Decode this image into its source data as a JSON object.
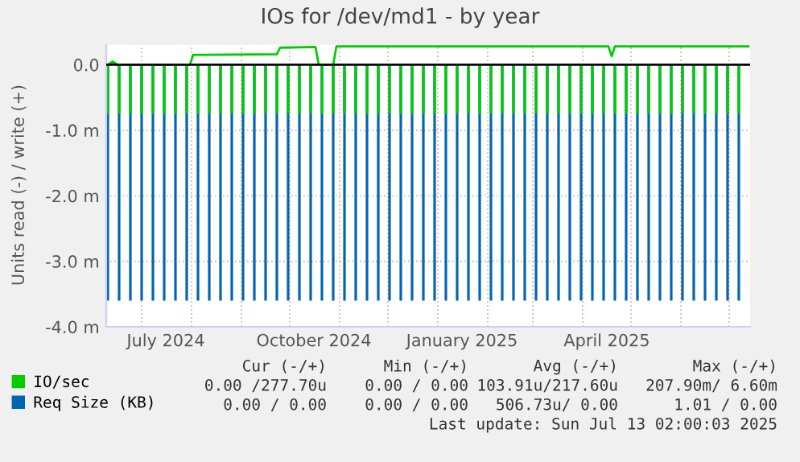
{
  "chart_data": {
    "type": "bar",
    "title": "IOs for /dev/md1 - by year",
    "ylabel": "Units read (-) / write (+)",
    "xlim": [
      "2024-06-09",
      "2025-07-14"
    ],
    "xticks": [
      {
        "value": "2024-07-01",
        "label": null
      },
      {
        "value": "2024-08-01",
        "label": null
      },
      {
        "value": "2024-09-01",
        "label": null
      },
      {
        "value": "2024-10-01",
        "label": null
      },
      {
        "value": "2024-11-01",
        "label": null
      },
      {
        "value": "2024-12-01",
        "label": null
      },
      {
        "value": "2025-01-01",
        "label": null
      },
      {
        "value": "2025-02-01",
        "label": null
      },
      {
        "value": "2025-03-01",
        "label": null
      },
      {
        "value": "2025-04-01",
        "label": null
      },
      {
        "value": "2025-05-01",
        "label": null
      },
      {
        "value": "2025-06-01",
        "label": null
      },
      {
        "value": "2025-07-01",
        "label": null
      },
      {
        "value": "2024-07-16",
        "label": "July 2024"
      },
      {
        "value": "2024-10-16",
        "label": "October 2024"
      },
      {
        "value": "2025-01-16",
        "label": "January 2025"
      },
      {
        "value": "2025-04-16",
        "label": "April 2025"
      }
    ],
    "ylim": [
      -4,
      0.3
    ],
    "yticks": [
      {
        "value": 0,
        "label": "0.0"
      },
      {
        "value": -1,
        "label": "-1.0 m"
      },
      {
        "value": -2,
        "label": "-2.0 m"
      },
      {
        "value": -3,
        "label": "-3.0 m"
      },
      {
        "value": -4,
        "label": "-4.0 m"
      }
    ],
    "grid": true,
    "legend": "bottom",
    "ref_lines": [
      {
        "axis": "y",
        "value": 0,
        "color": "#000000"
      }
    ],
    "x": [
      "2024-06-10",
      "2024-06-17",
      "2024-06-24",
      "2024-07-01",
      "2024-07-08",
      "2024-07-15",
      "2024-07-22",
      "2024-07-29",
      "2024-08-05",
      "2024-08-12",
      "2024-08-19",
      "2024-08-26",
      "2024-09-02",
      "2024-09-09",
      "2024-09-16",
      "2024-09-23",
      "2024-09-30",
      "2024-10-07",
      "2024-10-14",
      "2024-10-21",
      "2024-10-28",
      "2024-11-04",
      "2024-11-11",
      "2024-11-18",
      "2024-11-25",
      "2024-12-02",
      "2024-12-09",
      "2024-12-16",
      "2024-12-23",
      "2024-12-30",
      "2025-01-06",
      "2025-01-13",
      "2025-01-20",
      "2025-01-27",
      "2025-02-03",
      "2025-02-10",
      "2025-02-17",
      "2025-02-24",
      "2025-03-03",
      "2025-03-10",
      "2025-03-17",
      "2025-03-24",
      "2025-03-31",
      "2025-04-07",
      "2025-04-14",
      "2025-04-21",
      "2025-04-28",
      "2025-05-05",
      "2025-05-12",
      "2025-05-19",
      "2025-05-26",
      "2025-06-02",
      "2025-06-09",
      "2025-06-16",
      "2025-06-23",
      "2025-06-30",
      "2025-07-07"
    ],
    "series": [
      {
        "name": "IO/sec",
        "color": "#00cc00",
        "values": [
          -0.75,
          -0.75,
          -0.75,
          -0.75,
          -0.75,
          -0.75,
          -0.75,
          -0.75,
          -0.75,
          -0.75,
          -0.75,
          -0.75,
          -0.75,
          -0.75,
          -0.75,
          -0.75,
          -0.75,
          -0.75,
          -0.75,
          -0.75,
          -0.75,
          -0.75,
          -0.75,
          -0.75,
          -0.75,
          -0.75,
          -0.75,
          -0.75,
          -0.75,
          -0.75,
          -0.75,
          -0.75,
          -0.75,
          -0.75,
          -0.75,
          -0.75,
          -0.75,
          -0.75,
          -0.75,
          -0.75,
          -0.75,
          -0.75,
          -0.75,
          -0.75,
          -0.75,
          -0.75,
          -0.75,
          -0.75,
          -0.75,
          -0.75,
          -0.75,
          -0.75,
          -0.75,
          -0.75,
          -0.75,
          -0.75,
          -0.75
        ]
      },
      {
        "name": "Req Size (KB)",
        "color": "#0066b3",
        "values": [
          -3.6,
          -3.6,
          -3.6,
          -3.6,
          -3.6,
          -3.6,
          -3.6,
          -3.6,
          -3.6,
          -3.6,
          -3.6,
          -3.6,
          -3.6,
          -3.6,
          -3.6,
          -3.6,
          -3.6,
          -3.6,
          -3.6,
          -3.6,
          -3.6,
          -3.6,
          -3.6,
          -3.6,
          -3.6,
          -3.6,
          -3.6,
          -3.6,
          -3.6,
          -3.6,
          -3.6,
          -3.6,
          -3.6,
          -3.6,
          -3.6,
          -3.6,
          -3.6,
          -3.6,
          -3.6,
          -3.6,
          -3.6,
          -3.6,
          -3.6,
          -3.6,
          -3.6,
          -3.6,
          -3.6,
          -3.6,
          -3.6,
          -3.6,
          -3.6,
          -3.6,
          -3.6,
          -3.6,
          -3.6,
          -3.6,
          -3.6
        ]
      },
      {
        "type": "line",
        "color": "#00cc00",
        "x": [
          "2024-06-10",
          "2024-06-13",
          "2024-06-16",
          "2024-07-31",
          "2024-08-02",
          "2024-09-23",
          "2024-09-25",
          "2024-10-17",
          "2024-10-19",
          "2024-10-28",
          "2024-10-30",
          "2025-04-17",
          "2025-04-19",
          "2025-04-21",
          "2025-07-13"
        ],
        "values": [
          0.0,
          0.05,
          0.0,
          0.0,
          0.15,
          0.16,
          0.26,
          0.27,
          0.0,
          0.0,
          0.28,
          0.28,
          0.13,
          0.28,
          0.28
        ]
      }
    ],
    "annotations": [
      "Cur (-/+)",
      "Min (-/+)",
      "Avg (-/+)",
      "Max (-/+)",
      "0.00 /277.70u",
      "0.00 / 0.00",
      "103.91u/217.60u",
      "207.90m/ 6.60m",
      "0.00 / 0.00",
      "0.00 / 0.00",
      "506.73u/ 0.00",
      "1.01 / 0.00",
      "Last update: Sun Jul 13 02:00:03 2025"
    ]
  }
}
